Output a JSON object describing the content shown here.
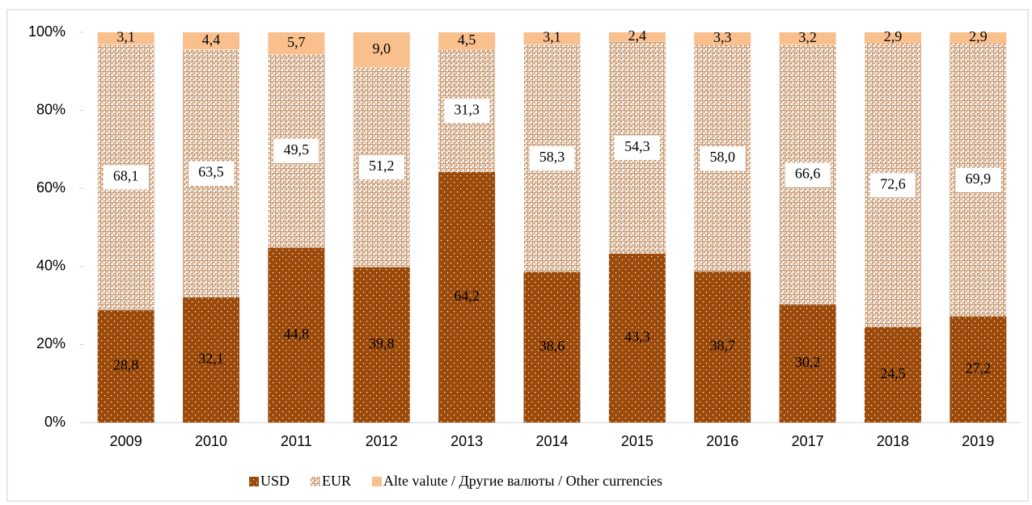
{
  "chart_data": {
    "type": "bar",
    "stacked": true,
    "categories": [
      "2009",
      "2010",
      "2011",
      "2012",
      "2013",
      "2014",
      "2015",
      "2016",
      "2017",
      "2018",
      "2019"
    ],
    "series": [
      {
        "name": "USD",
        "color": "#9c4a0a",
        "pattern": "dots",
        "values": [
          28.8,
          32.1,
          44.8,
          39.8,
          64.2,
          38.6,
          43.3,
          38.7,
          30.2,
          24.5,
          27.2
        ],
        "value_labels": [
          "28,8",
          "32,1",
          "44,8",
          "39,8",
          "64,2",
          "38,6",
          "43,3",
          "38,7",
          "30,2",
          "24,5",
          "27,2"
        ]
      },
      {
        "name": "EUR",
        "color": "#b06a30",
        "pattern": "crosshatch",
        "values": [
          68.1,
          63.5,
          49.5,
          51.2,
          31.3,
          58.3,
          54.3,
          58.0,
          66.6,
          72.6,
          69.9
        ],
        "value_labels": [
          "68,1",
          "63,5",
          "49,5",
          "51,2",
          "31,3",
          "58,3",
          "54,3",
          "58,0",
          "66,6",
          "72,6",
          "69,9"
        ]
      },
      {
        "name": "Alte valute / Другие валюты / Other currencies",
        "color": "#f9c08e",
        "values": [
          3.1,
          4.4,
          5.7,
          9.0,
          4.5,
          3.1,
          2.4,
          3.3,
          3.2,
          2.9,
          2.9
        ],
        "value_labels": [
          "3,1",
          "4,4",
          "5,7",
          "9,0",
          "4,5",
          "3,1",
          "2,4",
          "3,3",
          "3,2",
          "2,9",
          "2,9"
        ]
      }
    ],
    "ylim": [
      0,
      100
    ],
    "yticks": [
      {
        "value": 0,
        "label": "0%"
      },
      {
        "value": 20,
        "label": "20%"
      },
      {
        "value": 40,
        "label": "40%"
      },
      {
        "value": 60,
        "label": "60%"
      },
      {
        "value": 80,
        "label": "80%"
      },
      {
        "value": 100,
        "label": "100%"
      }
    ],
    "legend": "bottom"
  }
}
